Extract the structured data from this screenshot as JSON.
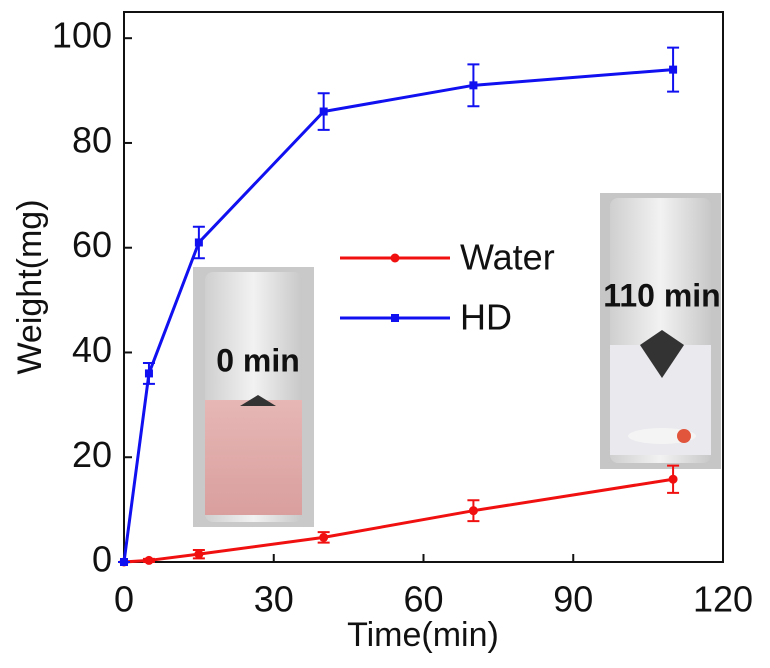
{
  "chart_data": {
    "type": "line",
    "x_label": "Time(min)",
    "y_label": "Weight(mg)",
    "x": [
      0,
      5,
      15,
      40,
      70,
      110
    ],
    "series": [
      {
        "name": "Water",
        "color": "#f01010",
        "marker": "circle",
        "values": [
          0,
          0.3,
          1.5,
          4.7,
          9.8,
          15.8
        ],
        "errors": [
          0,
          0.3,
          0.8,
          1,
          2,
          2.6
        ]
      },
      {
        "name": "HD",
        "color": "#1010f0",
        "marker": "square",
        "values": [
          0,
          36,
          61,
          86,
          91,
          94
        ],
        "errors": [
          0,
          2,
          3,
          3.5,
          4,
          4.2
        ]
      }
    ],
    "xlim": [
      0,
      120
    ],
    "xticks": [
      0,
      30,
      60,
      90,
      120
    ],
    "ylim": [
      0,
      105
    ],
    "yticks": [
      0,
      20,
      40,
      60,
      80,
      100
    ],
    "annotations": [
      "0 min",
      "110 min"
    ]
  }
}
